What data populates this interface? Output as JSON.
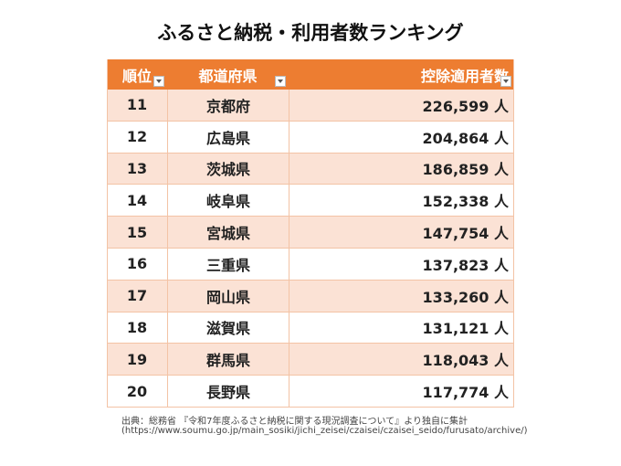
{
  "title": "ふるさと納税・利用者数ランキング",
  "table": {
    "header": [
      "順位",
      "都道府県",
      "控除適用者数"
    ],
    "rows": [
      [
        "11",
        "京都府",
        "226,599 人"
      ],
      [
        "12",
        "広島県",
        "204,864 人"
      ],
      [
        "13",
        "茨城県",
        "186,859 人"
      ],
      [
        "14",
        "岐阜県",
        "152,338 人"
      ],
      [
        "15",
        "宮城県",
        "147,754 人"
      ],
      [
        "16",
        "三重県",
        "137,823 人"
      ],
      [
        "17",
        "岡山県",
        "133,260 人"
      ],
      [
        "18",
        "滋賀県",
        "131,121 人"
      ],
      [
        "19",
        "群馬県",
        "118,043 人"
      ],
      [
        "20",
        "長野県",
        "117,774 人"
      ]
    ]
  },
  "source": [
    "出典：総務省 『令和7年度ふるさと納税に関する現況調査について』より独自に集計",
    "(https://www.soumu.go.jp/main_sosiki/jichi_zeisei/czaisei/czaisei_seido/furusato/archive/)"
  ]
}
